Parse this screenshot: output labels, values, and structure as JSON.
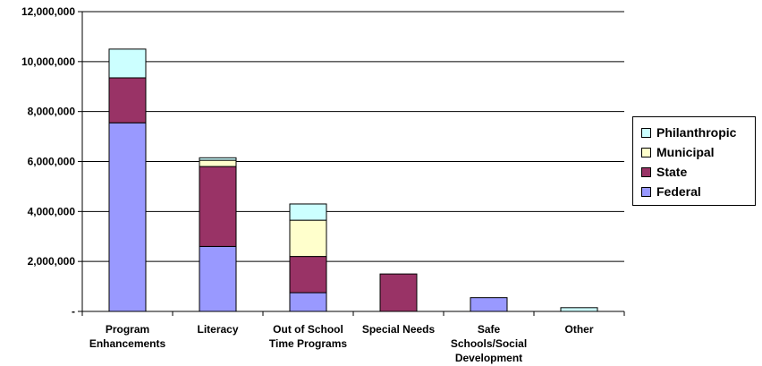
{
  "chart_data": {
    "type": "bar",
    "stacked": true,
    "categories": [
      [
        "Program",
        "Enhancements"
      ],
      [
        "Literacy"
      ],
      [
        "Out of School",
        "Time Programs"
      ],
      [
        "Special Needs"
      ],
      [
        "Safe",
        "Schools/Social",
        "Development"
      ],
      [
        "Other"
      ]
    ],
    "series": [
      {
        "name": "Federal",
        "color": "#9999ff",
        "values": [
          7550000,
          2600000,
          750000,
          0,
          550000,
          0
        ]
      },
      {
        "name": "State",
        "color": "#993366",
        "values": [
          1800000,
          3200000,
          1450000,
          1500000,
          0,
          0
        ]
      },
      {
        "name": "Municipal",
        "color": "#ffffcc",
        "values": [
          0,
          250000,
          1450000,
          0,
          0,
          0
        ]
      },
      {
        "name": "Philanthropic",
        "color": "#ccffff",
        "values": [
          1150000,
          100000,
          650000,
          0,
          0,
          150000
        ]
      }
    ],
    "y_ticks": [
      "-",
      "2,000,000",
      "4,000,000",
      "6,000,000",
      "8,000,000",
      "10,000,000",
      "12,000,000"
    ],
    "ylim": [
      0,
      12000000
    ],
    "grid": true,
    "legend_position": "right",
    "legend_order": [
      "Philanthropic",
      "Municipal",
      "State",
      "Federal"
    ]
  }
}
